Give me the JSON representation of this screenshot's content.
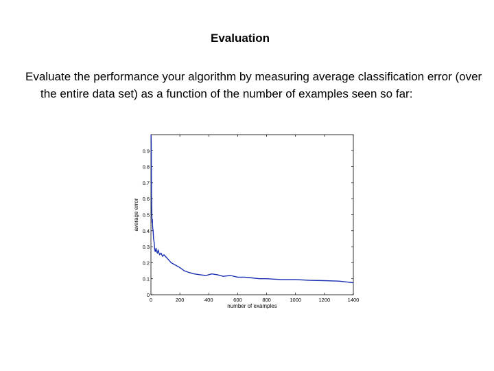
{
  "slide": {
    "title": "Evaluation",
    "body": "Evaluate the performance your algorithm by measuring average classification error (over the entire data set) as a function of the number of examples seen so far:"
  },
  "chart_data": {
    "type": "line",
    "title": "",
    "xlabel": "number of examples",
    "ylabel": "average error",
    "xlim": [
      0,
      1400
    ],
    "ylim": [
      0,
      1
    ],
    "xticks": [
      0,
      200,
      400,
      600,
      800,
      1000,
      1200,
      1400
    ],
    "yticks": [
      0,
      0.1,
      0.2,
      0.3,
      0.4,
      0.5,
      0.6,
      0.7,
      0.8,
      0.9
    ],
    "ytick_labels": [
      "0",
      "0.1",
      "0.2",
      "0.3",
      "0.4",
      "0.5",
      "0.6",
      "0.7",
      "0.8",
      "0.9"
    ],
    "grid": false,
    "color": "#1a2fb0",
    "series": [
      {
        "x": [
          1,
          2,
          3,
          4,
          6,
          8,
          10,
          12,
          15,
          18,
          22,
          26,
          30,
          35,
          40,
          45,
          50,
          60,
          70,
          80,
          90,
          100,
          120,
          140,
          160,
          180,
          200,
          230,
          260,
          300,
          340,
          380,
          420,
          460,
          500,
          550,
          600,
          650,
          700,
          750,
          800,
          900,
          1000,
          1100,
          1200,
          1300,
          1400
        ],
        "y": [
          1.0,
          0.95,
          0.8,
          0.62,
          0.5,
          0.45,
          0.47,
          0.42,
          0.4,
          0.35,
          0.33,
          0.28,
          0.27,
          0.29,
          0.27,
          0.26,
          0.28,
          0.25,
          0.26,
          0.24,
          0.25,
          0.24,
          0.22,
          0.2,
          0.19,
          0.18,
          0.17,
          0.15,
          0.14,
          0.13,
          0.125,
          0.12,
          0.13,
          0.125,
          0.115,
          0.12,
          0.11,
          0.11,
          0.105,
          0.1,
          0.1,
          0.095,
          0.095,
          0.09,
          0.088,
          0.085,
          0.075
        ]
      }
    ]
  }
}
